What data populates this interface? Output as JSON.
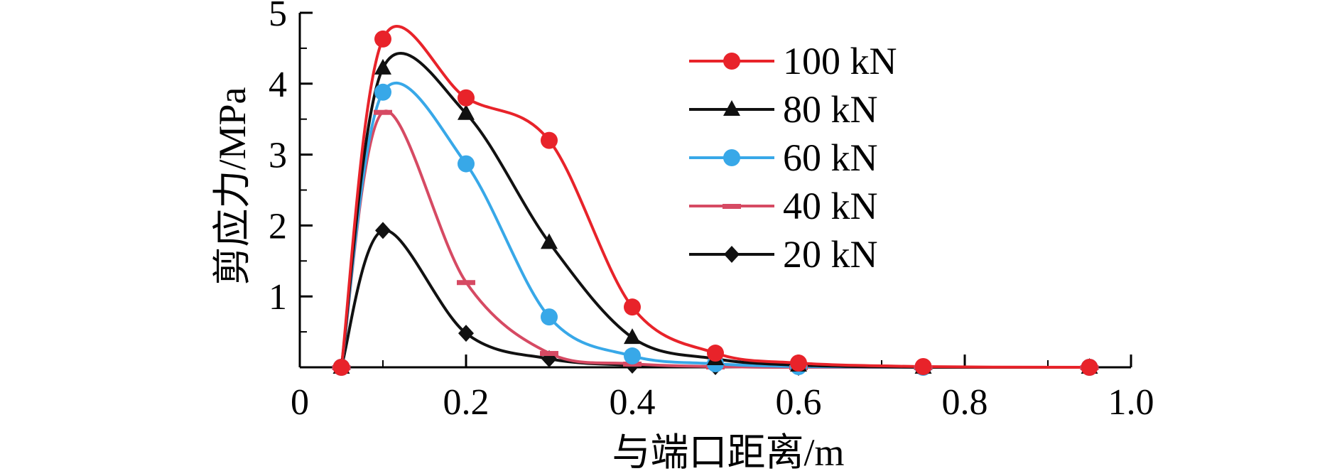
{
  "chart_data": {
    "type": "line",
    "xlabel": "与端口距离/m",
    "ylabel": "剪应力/MPa",
    "xlim": [
      0,
      1.0
    ],
    "ylim": [
      0,
      5
    ],
    "xticks": [
      0,
      0.2,
      0.4,
      0.6,
      0.8,
      1.0
    ],
    "xtick_labels": [
      "0",
      "0.2",
      "0.4",
      "0.6",
      "0.8",
      "1.0"
    ],
    "yticks": [
      1,
      2,
      3,
      4,
      5
    ],
    "ytick_labels": [
      "1",
      "2",
      "3",
      "4",
      "5"
    ],
    "grid": false,
    "legend_position": "top-right",
    "x": [
      0.05,
      0.1,
      0.2,
      0.3,
      0.4,
      0.5,
      0.6,
      0.75,
      0.95
    ],
    "series": [
      {
        "name": "100 kN",
        "color": "#e8232a",
        "marker": "circle",
        "values": [
          0,
          4.63,
          3.8,
          3.2,
          0.85,
          0.2,
          0.06,
          0.01,
          0.0
        ]
      },
      {
        "name": "80 kN",
        "color": "#111111",
        "marker": "triangle",
        "values": [
          0,
          4.22,
          3.58,
          1.76,
          0.42,
          0.12,
          0.03,
          0.0,
          0.0
        ]
      },
      {
        "name": "60 kN",
        "color": "#38a8e8",
        "marker": "circle",
        "values": [
          0,
          3.88,
          2.87,
          0.71,
          0.16,
          0.05,
          0.01,
          0.0,
          0.0
        ]
      },
      {
        "name": "40 kN",
        "color": "#d64a63",
        "marker": "dash",
        "values": [
          0,
          3.6,
          1.2,
          0.2,
          0.05,
          0.01,
          0.0,
          0.0,
          0.0
        ]
      },
      {
        "name": "20 kN",
        "color": "#111111",
        "marker": "diamond",
        "values": [
          0,
          1.93,
          0.48,
          0.12,
          0.03,
          0.01,
          0.0,
          0.0,
          0.0
        ]
      }
    ]
  }
}
